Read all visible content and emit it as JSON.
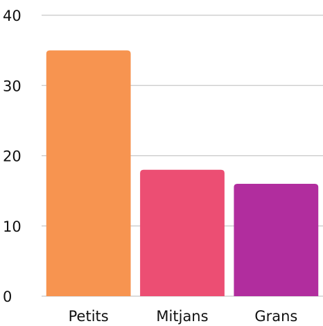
{
  "chart_data": {
    "type": "bar",
    "categories": [
      "Petits",
      "Mitjans",
      "Grans"
    ],
    "values": [
      35,
      18,
      16
    ],
    "colors": [
      "#F79450",
      "#EC4E73",
      "#B12D9E"
    ],
    "yticks": [
      "0",
      "10",
      "20",
      "30",
      "40"
    ],
    "ylim": [
      0,
      40
    ],
    "grid": true,
    "legend": "none",
    "title": "",
    "xlabel": "",
    "ylabel": ""
  }
}
